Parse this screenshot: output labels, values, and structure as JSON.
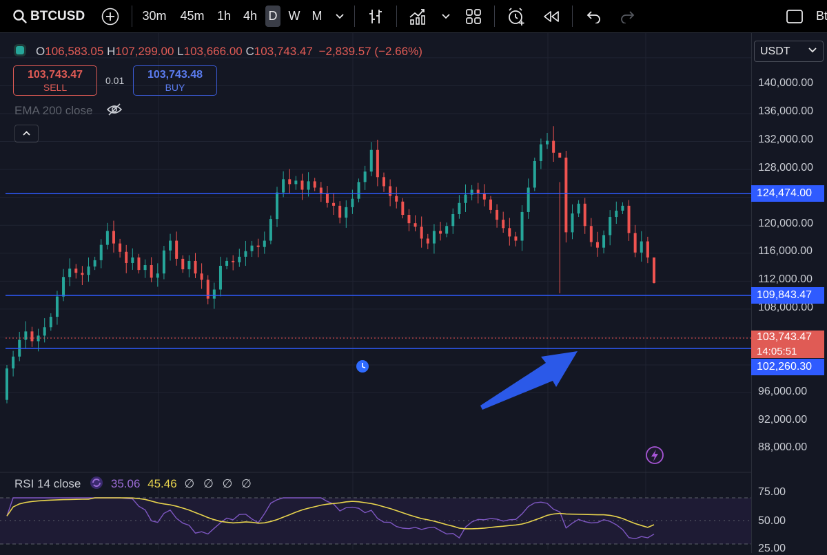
{
  "toolbar": {
    "symbol": "BTCUSD",
    "intervals": [
      "30m",
      "45m",
      "1h",
      "4h",
      "D",
      "W",
      "M"
    ],
    "selected_interval": "D",
    "right_text": "Bt"
  },
  "legend": {
    "open_label": "O",
    "open": "106,583.05",
    "high_label": "H",
    "high": "107,299.00",
    "low_label": "L",
    "low": "103,666.00",
    "close_label": "C",
    "close": "103,743.47",
    "change": "−2,839.57 (−2.66%)"
  },
  "trade": {
    "sell_price": "103,743.47",
    "sell_label": "SELL",
    "spread": "0.01",
    "buy_price": "103,743.48",
    "buy_label": "BUY"
  },
  "indicator": {
    "ema_label": "EMA 200 close"
  },
  "currency": "USDT",
  "price_axis": [
    "140,000.00",
    "136,000.00",
    "132,000.00",
    "128,000.00",
    "120,000.00",
    "116,000.00",
    "112,000.00",
    "108,000.00",
    "96,000.00",
    "92,000.00",
    "88,000.00"
  ],
  "price_tags": {
    "upper_line": "124,474.00",
    "mid_line": "109,843.47",
    "current_price": "103,743.47",
    "countdown": "14:05:51",
    "lower_line": "102,260.30"
  },
  "rsi": {
    "label": "RSI 14 close",
    "value": "35.06",
    "ma_value": "45.46",
    "extras": "∅ ∅ ∅ ∅",
    "axis": [
      "75.00",
      "50.00",
      "25.00"
    ]
  },
  "colors": {
    "up": "#26a69a",
    "down": "#ef5350",
    "level_line": "#2f5bff",
    "arrow": "#2b59e8",
    "rsi": "#7e57c2",
    "rsi_ma": "#e8d44d"
  },
  "chart_data": {
    "type": "candlestick",
    "symbol": "BTCUSD",
    "timeframe": "D",
    "y_range": [
      86000,
      141000
    ],
    "horizontal_levels": [
      124474,
      109843.47,
      102260.3
    ],
    "current_price": 103743.47,
    "approx_closes": [
      91500,
      93200,
      95600,
      96800,
      95400,
      96200,
      97400,
      98900,
      101800,
      104600,
      105800,
      105200,
      104900,
      106100,
      107000,
      109200,
      111200,
      109400,
      108200,
      106600,
      107400,
      105600,
      106300,
      104500,
      105100,
      108400,
      109800,
      107200,
      105700,
      106900,
      105100,
      104200,
      101500,
      102800,
      106200,
      106900,
      106700,
      107500,
      108300,
      109100,
      108900,
      109800,
      112900,
      116700,
      118600,
      117900,
      118400,
      117100,
      118300,
      117400,
      116500,
      115200,
      114800,
      113100,
      114600,
      115800,
      118200,
      119700,
      122800,
      118900,
      117600,
      116200,
      115400,
      113500,
      112300,
      111800,
      110100,
      109400,
      111200,
      110800,
      111900,
      113600,
      115200,
      116400,
      117100,
      116600,
      115700,
      114200,
      112800,
      111600,
      110400,
      109800,
      113900,
      117400,
      121200,
      123600,
      124100,
      122400,
      121700,
      111000,
      113700,
      115100,
      111900,
      109600,
      108800,
      110600,
      113200,
      114100,
      114800,
      110900,
      108100,
      109700,
      107400,
      103743.47
    ]
  }
}
